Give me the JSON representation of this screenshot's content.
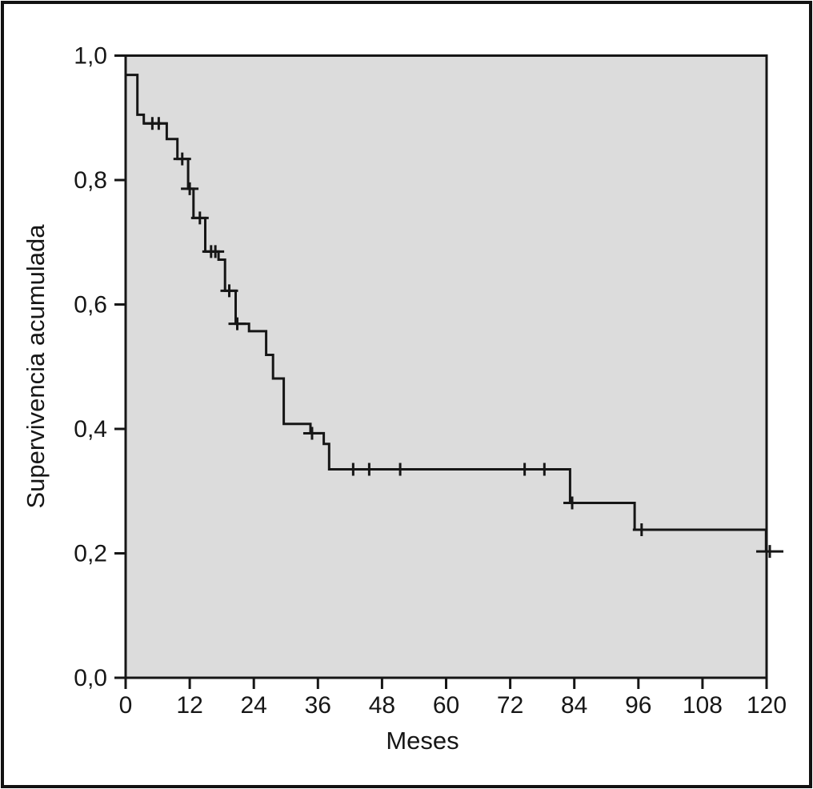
{
  "figure": {
    "background_color": "#ffffff",
    "border_color": "#121212",
    "plot_background_color": "#dcdcdc",
    "line_color": "#161616"
  },
  "chart_data": {
    "type": "line",
    "subtype": "kaplan-meier-step",
    "title": "",
    "xlabel": "Meses",
    "ylabel": "Supervivencia acumulada",
    "xlim": [
      0,
      120
    ],
    "ylim": [
      0.0,
      1.0
    ],
    "grid": false,
    "legend_position": "none",
    "x_ticks": [
      {
        "value": 0,
        "label": "0"
      },
      {
        "value": 12,
        "label": "12"
      },
      {
        "value": 24,
        "label": "24"
      },
      {
        "value": 36,
        "label": "36"
      },
      {
        "value": 48,
        "label": "48"
      },
      {
        "value": 60,
        "label": "60"
      },
      {
        "value": 72,
        "label": "72"
      },
      {
        "value": 84,
        "label": "84"
      },
      {
        "value": 96,
        "label": "96"
      },
      {
        "value": 108,
        "label": "108"
      },
      {
        "value": 120,
        "label": "120"
      }
    ],
    "y_ticks": [
      {
        "value": 1.0,
        "label": "1,0"
      },
      {
        "value": 0.8,
        "label": "0,8"
      },
      {
        "value": 0.6,
        "label": "0,6"
      },
      {
        "value": 0.4,
        "label": "0,4"
      },
      {
        "value": 0.2,
        "label": "0,2"
      },
      {
        "value": 0.0,
        "label": "0,0"
      }
    ],
    "series": [
      {
        "name": "survival-step-curve",
        "steps": [
          [
            0,
            0.969
          ],
          [
            2.2,
            0.905
          ],
          [
            3.4,
            0.891
          ],
          [
            7.7,
            0.866
          ],
          [
            9.7,
            0.834
          ],
          [
            11.7,
            0.786
          ],
          [
            12.7,
            0.739
          ],
          [
            14.9,
            0.685
          ],
          [
            17.4,
            0.672
          ],
          [
            18.6,
            0.622
          ],
          [
            20.6,
            0.569
          ],
          [
            23.1,
            0.557
          ],
          [
            26.3,
            0.519
          ],
          [
            27.6,
            0.481
          ],
          [
            29.6,
            0.408
          ],
          [
            34.6,
            0.393
          ],
          [
            37.1,
            0.376
          ],
          [
            38.1,
            0.335
          ],
          [
            83.2,
            0.281
          ],
          [
            95.3,
            0.238
          ],
          [
            119.9,
            0.203
          ]
        ]
      }
    ],
    "censored_marks": [
      [
        5.0,
        0.891
      ],
      [
        6.2,
        0.891
      ],
      [
        10.6,
        0.834
      ],
      [
        12.0,
        0.786
      ],
      [
        13.9,
        0.739
      ],
      [
        16.0,
        0.685
      ],
      [
        16.8,
        0.685
      ],
      [
        19.4,
        0.622
      ],
      [
        20.9,
        0.569
      ],
      [
        34.9,
        0.393
      ],
      [
        42.6,
        0.335
      ],
      [
        45.6,
        0.335
      ],
      [
        51.4,
        0.335
      ],
      [
        74.7,
        0.335
      ],
      [
        78.4,
        0.335
      ],
      [
        83.6,
        0.281
      ],
      [
        96.6,
        0.238
      ],
      [
        120.6,
        0.203,
        1
      ]
    ]
  }
}
